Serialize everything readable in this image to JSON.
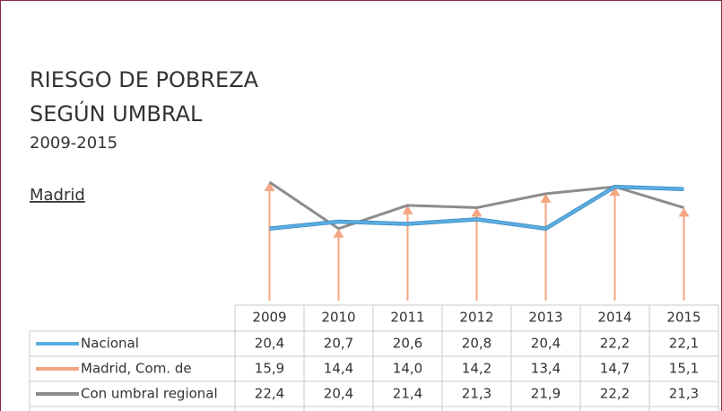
{
  "chart_data": {
    "type": "line",
    "title": "RIESGO DE POBREZA",
    "subtitle": "SEGÚN UMBRAL",
    "period": "2009-2015",
    "region": "Madrid",
    "categories": [
      "2009",
      "2010",
      "2011",
      "2012",
      "2013",
      "2014",
      "2015"
    ],
    "series": [
      {
        "name": "Nacional",
        "color": "#5aaee0",
        "values": [
          20.4,
          20.7,
          20.6,
          20.8,
          20.4,
          22.2,
          22.1
        ],
        "value_labels": [
          "20,4",
          "20,7",
          "20,6",
          "20,8",
          "20,4",
          "22,2",
          "22,1"
        ]
      },
      {
        "name": "Madrid, Com. de",
        "color": "#f4a582",
        "values": [
          15.9,
          14.4,
          14.0,
          14.2,
          13.4,
          14.7,
          15.1
        ],
        "value_labels": [
          "15,9",
          "14,4",
          "14,0",
          "14,2",
          "13,4",
          "14,7",
          "15,1"
        ]
      },
      {
        "name": "Con umbral regional",
        "color": "#8c8c8c",
        "values": [
          22.4,
          20.4,
          21.4,
          21.3,
          21.9,
          22.2,
          21.3
        ],
        "value_labels": [
          "22,4",
          "20,4",
          "21,4",
          "21,3",
          "21,9",
          "22,2",
          "21,3"
        ]
      }
    ],
    "ylim": [
      17.3,
      22.9
    ]
  }
}
